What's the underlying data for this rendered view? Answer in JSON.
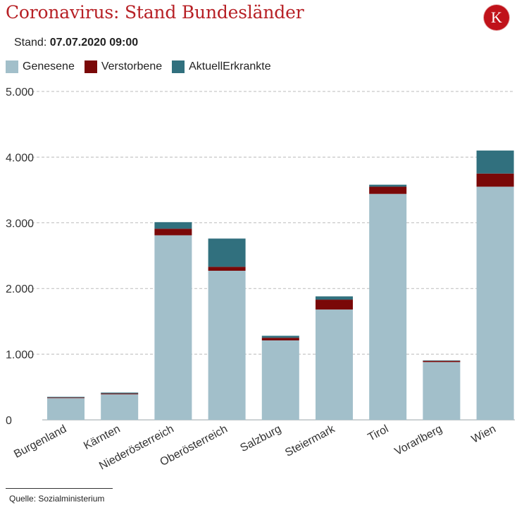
{
  "header": {
    "title": "Coronavirus: Stand Bundesländer",
    "logo_letter": "K",
    "stand_label": "Stand:",
    "stand_value": "07.07.2020 09:00"
  },
  "footer": {
    "source": "Quelle: Sozialministerium"
  },
  "colors": {
    "title": "#b72025",
    "genesene": "#a2bfca",
    "verstorbene": "#7a0808",
    "aktuell": "#31707e",
    "grid": "#bbbbbb"
  },
  "chart_data": {
    "type": "bar",
    "stacked": true,
    "title": "Coronavirus: Stand Bundesländer",
    "xlabel": "",
    "ylabel": "",
    "ylim": [
      0,
      5000
    ],
    "yticks": [
      0,
      1000,
      2000,
      3000,
      4000,
      5000
    ],
    "ytick_labels": [
      "0",
      "1.000",
      "2.000",
      "3.000",
      "4.000",
      "5.000"
    ],
    "grid": true,
    "legend_position": "top-left",
    "categories": [
      "Burgenland",
      "Kärnten",
      "Niederösterreich",
      "Oberösterreich",
      "Salzburg",
      "Steiermark",
      "Tirol",
      "Vorarlberg",
      "Wien"
    ],
    "series": [
      {
        "name": "Genesene",
        "color": "#a2bfca",
        "values": [
          330,
          390,
          2810,
          2270,
          1210,
          1680,
          3440,
          880,
          3550
        ]
      },
      {
        "name": "Verstorbene",
        "color": "#7a0808",
        "values": [
          10,
          12,
          100,
          60,
          40,
          150,
          110,
          18,
          200
        ]
      },
      {
        "name": "AktuellErkrankte",
        "color": "#31707e",
        "values": [
          10,
          13,
          100,
          430,
          30,
          50,
          30,
          7,
          350
        ]
      }
    ]
  }
}
